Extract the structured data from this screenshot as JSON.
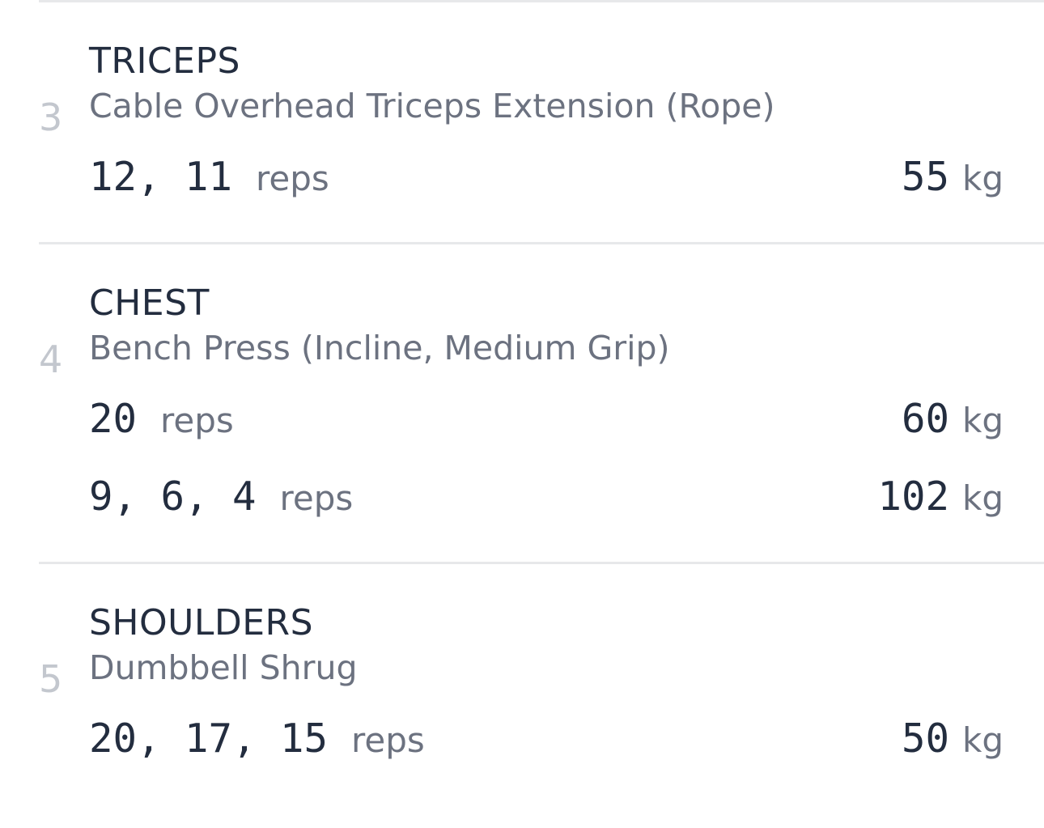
{
  "colors": {
    "text_dark": "#232d3f",
    "text_gray": "#6c7280",
    "index_gray": "#c3c7ce",
    "divider": "#e7e8ea",
    "background": "#ffffff"
  },
  "exercises": [
    {
      "index": "3",
      "muscle_group": "TRICEPS",
      "exercise_name": "Cable Overhead Triceps Extension (Rope)",
      "sets": [
        {
          "reps": "12, 11",
          "reps_unit": "reps",
          "weight": "55",
          "weight_unit": "kg"
        }
      ]
    },
    {
      "index": "4",
      "muscle_group": "CHEST",
      "exercise_name": "Bench Press (Incline, Medium Grip)",
      "sets": [
        {
          "reps": "20",
          "reps_unit": "reps",
          "weight": "60",
          "weight_unit": "kg"
        },
        {
          "reps": "9, 6, 4",
          "reps_unit": "reps",
          "weight": "102",
          "weight_unit": "kg"
        }
      ]
    },
    {
      "index": "5",
      "muscle_group": "SHOULDERS",
      "exercise_name": "Dumbbell Shrug",
      "sets": [
        {
          "reps": "20, 17, 15",
          "reps_unit": "reps",
          "weight": "50",
          "weight_unit": "kg"
        }
      ]
    }
  ]
}
